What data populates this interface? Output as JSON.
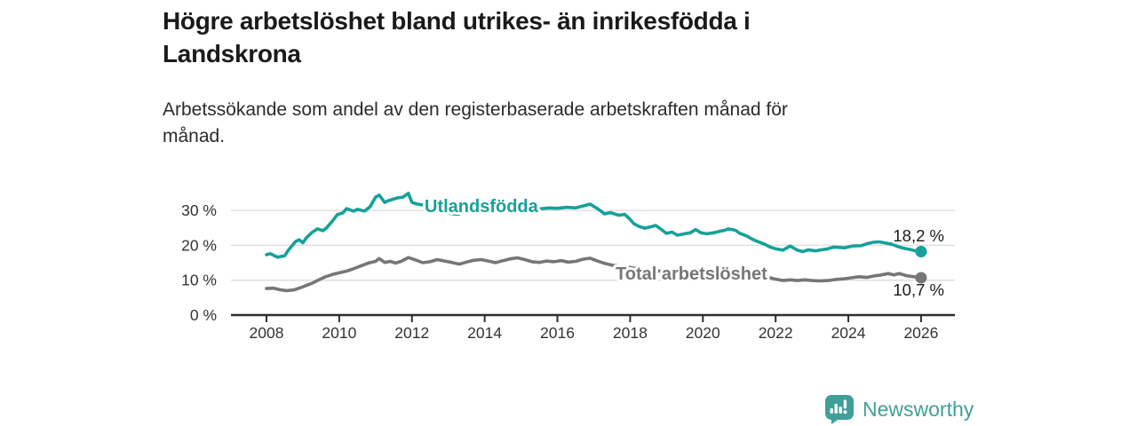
{
  "header": {
    "title_line1": "Högre arbetslöshet bland utrikes- än inrikesfödda i",
    "title_line2": "Landskrona",
    "subtitle_line1": "Arbetssökande som andel av den registerbaserade arbetskraften månad för",
    "subtitle_line2": "månad."
  },
  "footer": {
    "brand": "Newsworthy",
    "logo_icon": "bar-chart-speech-bubble-icon"
  },
  "colors": {
    "teal": "#16a199",
    "gray": "#767676",
    "axis": "#2e2e2e",
    "grid": "#dcdcdc",
    "tick_text": "#333333",
    "annotation_text": "#1a1a1a",
    "brand_teal": "#3f9f99"
  },
  "chart_data": {
    "type": "line",
    "title": "Högre arbetslöshet bland utrikes- än inrikesfödda i Landskrona",
    "subtitle": "Arbetssökande som andel av den registerbaserade arbetskraften månad för månad.",
    "grid": true,
    "legend_position": "inline-labels",
    "x_axis": {
      "ticks": [
        2008,
        2010,
        2012,
        2014,
        2016,
        2018,
        2020,
        2022,
        2024,
        2026
      ],
      "range": [
        2006.9,
        2026.9
      ]
    },
    "y_axis": {
      "tick_values": [
        0,
        10,
        20,
        30
      ],
      "tick_labels": [
        "0 %",
        "10 %",
        "20 %",
        "30 %"
      ],
      "range": [
        0,
        36
      ],
      "unit": "%"
    },
    "series": [
      {
        "name": "Utlandsfödda",
        "color": "#16a199",
        "end_label": "18,2 %",
        "end_value": 18.2,
        "points": [
          [
            2008.0,
            17.3
          ],
          [
            2008.1,
            17.6
          ],
          [
            2008.3,
            16.6
          ],
          [
            2008.5,
            17.0
          ],
          [
            2008.6,
            18.6
          ],
          [
            2008.8,
            21.1
          ],
          [
            2008.9,
            21.6
          ],
          [
            2009.0,
            20.7
          ],
          [
            2009.1,
            22.2
          ],
          [
            2009.25,
            23.7
          ],
          [
            2009.4,
            24.7
          ],
          [
            2009.55,
            24.2
          ],
          [
            2009.65,
            25.0
          ],
          [
            2009.8,
            26.8
          ],
          [
            2009.95,
            28.8
          ],
          [
            2010.1,
            29.3
          ],
          [
            2010.2,
            30.5
          ],
          [
            2010.4,
            29.8
          ],
          [
            2010.5,
            30.3
          ],
          [
            2010.7,
            29.8
          ],
          [
            2010.85,
            31.1
          ],
          [
            2011.0,
            33.8
          ],
          [
            2011.1,
            34.4
          ],
          [
            2011.25,
            32.3
          ],
          [
            2011.35,
            32.8
          ],
          [
            2011.6,
            33.6
          ],
          [
            2011.75,
            33.8
          ],
          [
            2011.9,
            34.9
          ],
          [
            2012.0,
            32.3
          ],
          [
            2012.15,
            31.8
          ],
          [
            2012.3,
            31.6
          ],
          [
            2012.5,
            31.0
          ],
          [
            2012.75,
            30.3
          ],
          [
            2013.0,
            29.2
          ],
          [
            2013.25,
            28.9
          ],
          [
            2013.5,
            29.6
          ],
          [
            2013.75,
            30.2
          ],
          [
            2014.0,
            30.6
          ],
          [
            2014.25,
            30.9
          ],
          [
            2014.5,
            30.5
          ],
          [
            2014.75,
            30.8
          ],
          [
            2015.0,
            31.2
          ],
          [
            2015.25,
            30.7
          ],
          [
            2015.5,
            30.4
          ],
          [
            2015.75,
            30.7
          ],
          [
            2016.0,
            30.6
          ],
          [
            2016.25,
            30.9
          ],
          [
            2016.5,
            30.7
          ],
          [
            2016.9,
            31.8
          ],
          [
            2017.1,
            30.5
          ],
          [
            2017.3,
            29.0
          ],
          [
            2017.45,
            29.4
          ],
          [
            2017.7,
            28.6
          ],
          [
            2017.85,
            28.9
          ],
          [
            2018.0,
            27.4
          ],
          [
            2018.1,
            26.2
          ],
          [
            2018.25,
            25.4
          ],
          [
            2018.4,
            24.9
          ],
          [
            2018.6,
            25.4
          ],
          [
            2018.7,
            25.7
          ],
          [
            2018.85,
            24.6
          ],
          [
            2019.0,
            23.4
          ],
          [
            2019.15,
            23.8
          ],
          [
            2019.3,
            22.9
          ],
          [
            2019.5,
            23.3
          ],
          [
            2019.65,
            23.6
          ],
          [
            2019.8,
            24.5
          ],
          [
            2019.95,
            23.6
          ],
          [
            2020.1,
            23.3
          ],
          [
            2020.3,
            23.6
          ],
          [
            2020.45,
            24.0
          ],
          [
            2020.6,
            24.3
          ],
          [
            2020.7,
            24.7
          ],
          [
            2020.9,
            24.3
          ],
          [
            2021.0,
            23.5
          ],
          [
            2021.2,
            22.7
          ],
          [
            2021.35,
            21.8
          ],
          [
            2021.5,
            21.1
          ],
          [
            2021.7,
            20.3
          ],
          [
            2021.85,
            19.5
          ],
          [
            2022.0,
            19.0
          ],
          [
            2022.2,
            18.6
          ],
          [
            2022.4,
            19.8
          ],
          [
            2022.6,
            18.6
          ],
          [
            2022.75,
            18.2
          ],
          [
            2022.9,
            18.7
          ],
          [
            2023.1,
            18.4
          ],
          [
            2023.25,
            18.7
          ],
          [
            2023.4,
            18.9
          ],
          [
            2023.6,
            19.5
          ],
          [
            2023.9,
            19.3
          ],
          [
            2024.1,
            19.8
          ],
          [
            2024.35,
            19.9
          ],
          [
            2024.5,
            20.4
          ],
          [
            2024.7,
            20.9
          ],
          [
            2024.85,
            21.0
          ],
          [
            2025.0,
            20.7
          ],
          [
            2025.2,
            20.3
          ],
          [
            2025.35,
            19.7
          ],
          [
            2025.5,
            19.2
          ],
          [
            2025.7,
            18.8
          ],
          [
            2025.85,
            18.4
          ],
          [
            2026.0,
            18.2
          ]
        ]
      },
      {
        "name": "Total arbetslöshet",
        "color": "#767676",
        "end_label": "10,7 %",
        "end_value": 10.7,
        "points": [
          [
            2008.0,
            7.6
          ],
          [
            2008.2,
            7.7
          ],
          [
            2008.35,
            7.3
          ],
          [
            2008.55,
            7.0
          ],
          [
            2008.75,
            7.2
          ],
          [
            2008.95,
            7.9
          ],
          [
            2009.1,
            8.5
          ],
          [
            2009.25,
            9.1
          ],
          [
            2009.4,
            9.9
          ],
          [
            2009.6,
            10.9
          ],
          [
            2009.8,
            11.6
          ],
          [
            2010.0,
            12.1
          ],
          [
            2010.2,
            12.6
          ],
          [
            2010.4,
            13.3
          ],
          [
            2010.6,
            14.1
          ],
          [
            2010.8,
            14.9
          ],
          [
            2011.0,
            15.4
          ],
          [
            2011.1,
            16.2
          ],
          [
            2011.25,
            15.1
          ],
          [
            2011.4,
            15.4
          ],
          [
            2011.55,
            14.9
          ],
          [
            2011.7,
            15.4
          ],
          [
            2011.9,
            16.5
          ],
          [
            2012.1,
            15.8
          ],
          [
            2012.3,
            15.0
          ],
          [
            2012.5,
            15.3
          ],
          [
            2012.7,
            15.9
          ],
          [
            2012.9,
            15.5
          ],
          [
            2013.1,
            15.1
          ],
          [
            2013.3,
            14.6
          ],
          [
            2013.5,
            15.2
          ],
          [
            2013.7,
            15.7
          ],
          [
            2013.9,
            15.9
          ],
          [
            2014.1,
            15.5
          ],
          [
            2014.3,
            15.0
          ],
          [
            2014.5,
            15.6
          ],
          [
            2014.7,
            16.1
          ],
          [
            2014.9,
            16.4
          ],
          [
            2015.1,
            15.9
          ],
          [
            2015.3,
            15.3
          ],
          [
            2015.5,
            15.1
          ],
          [
            2015.7,
            15.5
          ],
          [
            2015.9,
            15.3
          ],
          [
            2016.1,
            15.6
          ],
          [
            2016.3,
            15.2
          ],
          [
            2016.5,
            15.4
          ],
          [
            2016.7,
            16.0
          ],
          [
            2016.9,
            16.3
          ],
          [
            2017.1,
            15.5
          ],
          [
            2017.3,
            14.8
          ],
          [
            2017.5,
            14.3
          ],
          [
            2017.8,
            13.9
          ],
          [
            2018.1,
            13.5
          ],
          [
            2018.4,
            13.1
          ],
          [
            2018.7,
            12.7
          ],
          [
            2019.0,
            12.4
          ],
          [
            2019.4,
            12.0
          ],
          [
            2019.8,
            12.1
          ],
          [
            2020.2,
            12.8
          ],
          [
            2020.5,
            13.2
          ],
          [
            2020.8,
            12.9
          ],
          [
            2021.1,
            12.3
          ],
          [
            2021.5,
            11.5
          ],
          [
            2021.8,
            10.8
          ],
          [
            2022.0,
            10.3
          ],
          [
            2022.2,
            9.9
          ],
          [
            2022.4,
            10.1
          ],
          [
            2022.6,
            9.9
          ],
          [
            2022.8,
            10.1
          ],
          [
            2023.0,
            9.9
          ],
          [
            2023.2,
            9.8
          ],
          [
            2023.45,
            9.9
          ],
          [
            2023.65,
            10.2
          ],
          [
            2023.9,
            10.4
          ],
          [
            2024.1,
            10.7
          ],
          [
            2024.3,
            11.0
          ],
          [
            2024.5,
            10.8
          ],
          [
            2024.7,
            11.2
          ],
          [
            2024.9,
            11.5
          ],
          [
            2025.1,
            11.9
          ],
          [
            2025.25,
            11.5
          ],
          [
            2025.4,
            11.9
          ],
          [
            2025.6,
            11.3
          ],
          [
            2025.8,
            11.0
          ],
          [
            2026.0,
            10.7
          ]
        ]
      }
    ]
  }
}
